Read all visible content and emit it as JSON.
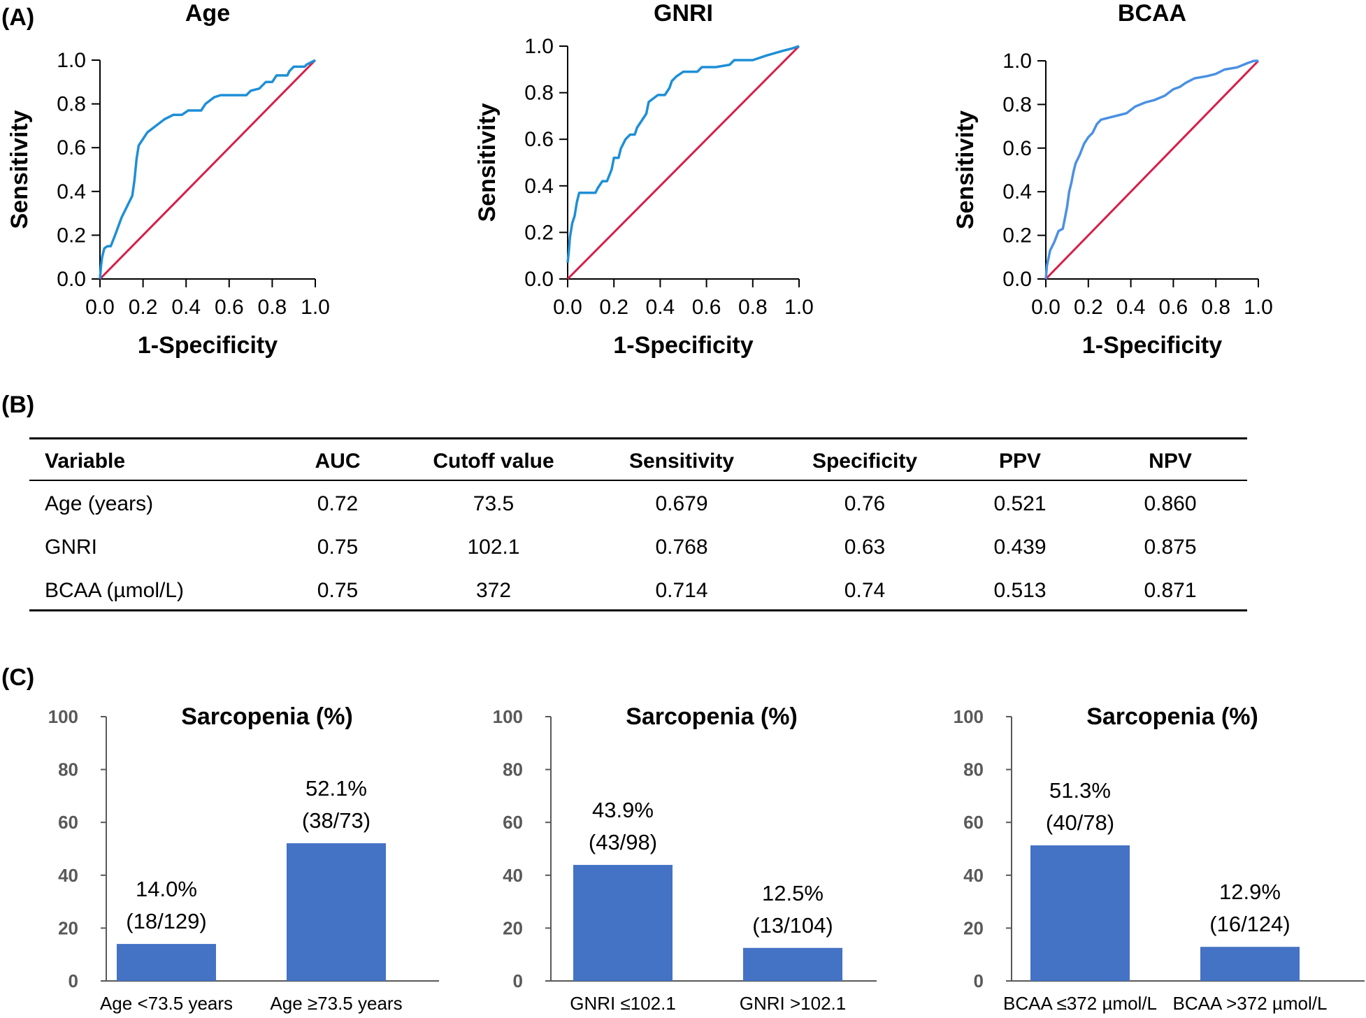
{
  "panels": {
    "a": "(A)",
    "b": "(B)",
    "c": "(C)"
  },
  "colors": {
    "roc_curve": "#1e8fd6",
    "roc_curve_bcaa": "#4a90e2",
    "diagonal": "#d61f4a",
    "bar": "#4472c4",
    "bar_axis": "#595959"
  },
  "roc": {
    "xlabel": "1-Specificity",
    "ylabel": "Sensitivity",
    "ticks": [
      "0.0",
      "0.2",
      "0.4",
      "0.6",
      "0.8",
      "1.0"
    ],
    "plots": [
      {
        "title": "Age",
        "points": [
          [
            0,
            0
          ],
          [
            0.005,
            0.06
          ],
          [
            0.01,
            0.1
          ],
          [
            0.02,
            0.14
          ],
          [
            0.035,
            0.15
          ],
          [
            0.05,
            0.15
          ],
          [
            0.07,
            0.2
          ],
          [
            0.1,
            0.28
          ],
          [
            0.13,
            0.34
          ],
          [
            0.15,
            0.38
          ],
          [
            0.16,
            0.45
          ],
          [
            0.17,
            0.55
          ],
          [
            0.18,
            0.61
          ],
          [
            0.22,
            0.67
          ],
          [
            0.26,
            0.7
          ],
          [
            0.3,
            0.73
          ],
          [
            0.34,
            0.75
          ],
          [
            0.38,
            0.75
          ],
          [
            0.41,
            0.77
          ],
          [
            0.47,
            0.77
          ],
          [
            0.49,
            0.8
          ],
          [
            0.53,
            0.83
          ],
          [
            0.56,
            0.84
          ],
          [
            0.64,
            0.84
          ],
          [
            0.68,
            0.84
          ],
          [
            0.7,
            0.86
          ],
          [
            0.74,
            0.87
          ],
          [
            0.77,
            0.9
          ],
          [
            0.8,
            0.9
          ],
          [
            0.82,
            0.93
          ],
          [
            0.87,
            0.93
          ],
          [
            0.88,
            0.95
          ],
          [
            0.9,
            0.97
          ],
          [
            0.95,
            0.97
          ],
          [
            0.96,
            0.98
          ],
          [
            1,
            1
          ]
        ]
      },
      {
        "title": "GNRI",
        "points": [
          [
            0,
            0.07
          ],
          [
            0.005,
            0.12
          ],
          [
            0.01,
            0.18
          ],
          [
            0.02,
            0.24
          ],
          [
            0.03,
            0.27
          ],
          [
            0.04,
            0.33
          ],
          [
            0.05,
            0.37
          ],
          [
            0.09,
            0.37
          ],
          [
            0.12,
            0.37
          ],
          [
            0.13,
            0.39
          ],
          [
            0.15,
            0.42
          ],
          [
            0.17,
            0.42
          ],
          [
            0.19,
            0.47
          ],
          [
            0.2,
            0.52
          ],
          [
            0.22,
            0.52
          ],
          [
            0.23,
            0.56
          ],
          [
            0.25,
            0.6
          ],
          [
            0.27,
            0.62
          ],
          [
            0.29,
            0.62
          ],
          [
            0.3,
            0.65
          ],
          [
            0.32,
            0.68
          ],
          [
            0.34,
            0.71
          ],
          [
            0.35,
            0.76
          ],
          [
            0.39,
            0.79
          ],
          [
            0.42,
            0.79
          ],
          [
            0.44,
            0.82
          ],
          [
            0.45,
            0.85
          ],
          [
            0.47,
            0.87
          ],
          [
            0.5,
            0.89
          ],
          [
            0.56,
            0.89
          ],
          [
            0.58,
            0.91
          ],
          [
            0.64,
            0.91
          ],
          [
            0.7,
            0.92
          ],
          [
            0.72,
            0.94
          ],
          [
            0.8,
            0.94
          ],
          [
            0.86,
            0.96
          ],
          [
            0.93,
            0.98
          ],
          [
            0.97,
            0.99
          ],
          [
            1,
            1
          ]
        ]
      },
      {
        "title": "BCAA",
        "points": [
          [
            0,
            0
          ],
          [
            0.005,
            0.06
          ],
          [
            0.02,
            0.13
          ],
          [
            0.04,
            0.17
          ],
          [
            0.06,
            0.22
          ],
          [
            0.08,
            0.23
          ],
          [
            0.09,
            0.28
          ],
          [
            0.1,
            0.33
          ],
          [
            0.11,
            0.4
          ],
          [
            0.12,
            0.44
          ],
          [
            0.13,
            0.49
          ],
          [
            0.14,
            0.53
          ],
          [
            0.16,
            0.57
          ],
          [
            0.18,
            0.62
          ],
          [
            0.2,
            0.65
          ],
          [
            0.22,
            0.67
          ],
          [
            0.24,
            0.71
          ],
          [
            0.26,
            0.73
          ],
          [
            0.3,
            0.74
          ],
          [
            0.34,
            0.75
          ],
          [
            0.38,
            0.76
          ],
          [
            0.42,
            0.79
          ],
          [
            0.47,
            0.81
          ],
          [
            0.51,
            0.82
          ],
          [
            0.56,
            0.84
          ],
          [
            0.6,
            0.87
          ],
          [
            0.63,
            0.88
          ],
          [
            0.66,
            0.9
          ],
          [
            0.7,
            0.92
          ],
          [
            0.76,
            0.93
          ],
          [
            0.8,
            0.94
          ],
          [
            0.84,
            0.96
          ],
          [
            0.9,
            0.97
          ],
          [
            0.95,
            0.99
          ],
          [
            0.98,
            1
          ],
          [
            1,
            1
          ]
        ]
      }
    ]
  },
  "table": {
    "headers": [
      "Variable",
      "AUC",
      "Cutoff value",
      "Sensitivity",
      "Specificity",
      "PPV",
      "NPV"
    ],
    "rows": [
      [
        "Age (years)",
        "0.72",
        "73.5",
        "0.679",
        "0.76",
        "0.521",
        "0.860"
      ],
      [
        "GNRI",
        "0.75",
        "102.1",
        "0.768",
        "0.63",
        "0.439",
        "0.875"
      ],
      [
        "BCAA (µmol/L)",
        "0.75",
        "372",
        "0.714",
        "0.74",
        "0.513",
        "0.871"
      ]
    ]
  },
  "chart_data": [
    {
      "type": "bar",
      "title": "Sarcopenia (%)",
      "ylim": [
        0,
        100
      ],
      "yticks": [
        "0",
        "20",
        "40",
        "60",
        "80",
        "100"
      ],
      "categories": [
        "Age <73.5 years",
        "Age ≥73.5 years"
      ],
      "values": [
        14.0,
        52.1
      ],
      "labels": [
        "14.0%",
        "52.1%"
      ],
      "counts": [
        "(18/129)",
        "(38/73)"
      ]
    },
    {
      "type": "bar",
      "title": "Sarcopenia (%)",
      "ylim": [
        0,
        100
      ],
      "yticks": [
        "0",
        "20",
        "40",
        "60",
        "80",
        "100"
      ],
      "categories": [
        "GNRI ≤102.1",
        "GNRI >102.1"
      ],
      "values": [
        43.9,
        12.5
      ],
      "labels": [
        "43.9%",
        "12.5%"
      ],
      "counts": [
        "(43/98)",
        "(13/104)"
      ]
    },
    {
      "type": "bar",
      "title": "Sarcopenia (%)",
      "ylim": [
        0,
        100
      ],
      "yticks": [
        "0",
        "20",
        "40",
        "60",
        "80",
        "100"
      ],
      "categories": [
        "BCAA ≤372 µmol/L",
        "BCAA >372 µmol/L"
      ],
      "values": [
        51.3,
        12.9
      ],
      "labels": [
        "51.3%",
        "12.9%"
      ],
      "counts": [
        "(40/78)",
        "(16/124)"
      ]
    }
  ]
}
